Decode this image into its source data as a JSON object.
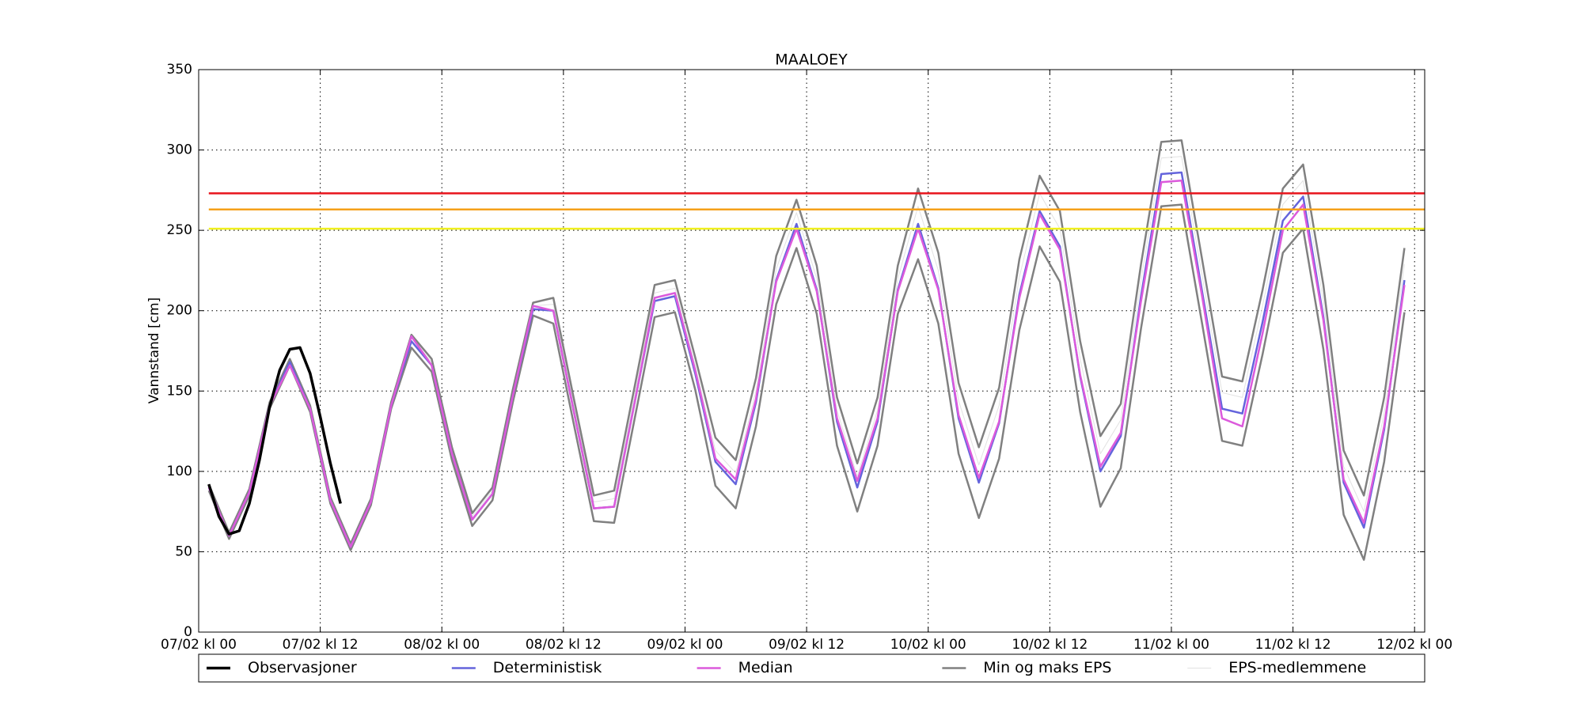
{
  "chart_data": {
    "type": "line",
    "title": "MAALOEY",
    "y_label": "Vannstand [cm]",
    "grid": true,
    "legend": "bottom",
    "xlim": [
      0,
      121
    ],
    "ylim": [
      0,
      350
    ],
    "yticks": [
      0,
      50,
      100,
      150,
      200,
      250,
      300,
      350
    ],
    "xticks": [
      {
        "value": 0,
        "label": "07/02 kl 00"
      },
      {
        "value": 12,
        "label": "07/02 kl 12"
      },
      {
        "value": 24,
        "label": "08/02 kl 00"
      },
      {
        "value": 36,
        "label": "08/02 kl 12"
      },
      {
        "value": 48,
        "label": "09/02 kl 00"
      },
      {
        "value": 60,
        "label": "09/02 kl 12"
      },
      {
        "value": 72,
        "label": "10/02 kl 00"
      },
      {
        "value": 84,
        "label": "10/02 kl 12"
      },
      {
        "value": 96,
        "label": "11/02 kl 00"
      },
      {
        "value": 108,
        "label": "11/02 kl 12"
      },
      {
        "value": 120,
        "label": "12/02 kl 00"
      }
    ],
    "x": [
      1,
      3,
      5,
      7,
      9,
      11,
      13,
      15,
      17,
      19,
      21,
      23,
      25,
      27,
      29,
      31,
      33,
      35,
      37,
      39,
      41,
      43,
      45,
      47,
      49,
      51,
      53,
      55,
      57,
      59,
      61,
      63,
      65,
      67,
      69,
      71,
      73,
      75,
      77,
      79,
      81,
      83,
      85,
      87,
      89,
      91,
      93,
      95,
      97,
      99,
      101,
      103,
      105,
      107,
      109,
      111,
      113,
      115,
      117,
      119
    ],
    "thresholds": [
      {
        "value": 273,
        "color": "#e8141c"
      },
      {
        "value": 263,
        "color": "#f5a01a"
      },
      {
        "value": 251,
        "color": "#f0f020"
      }
    ],
    "series": [
      {
        "name": "Observasjoner",
        "color": "#000000",
        "x": [
          1,
          2,
          3,
          4,
          5,
          6,
          7,
          8,
          9,
          10,
          11,
          12,
          13,
          14
        ],
        "values": [
          92,
          72,
          61,
          63,
          80,
          107,
          140,
          163,
          176,
          177,
          161,
          134,
          105,
          80
        ]
      },
      {
        "name": "Deterministisk",
        "color": "#6464dc",
        "values": [
          90,
          60,
          87,
          141,
          168,
          139,
          82,
          53,
          81,
          141,
          181,
          166,
          111,
          70,
          86,
          147,
          201,
          200,
          138,
          77,
          78,
          142,
          206,
          209,
          161,
          106,
          92,
          143,
          219,
          254,
          213,
          131,
          90,
          131,
          213,
          254,
          214,
          133,
          93,
          130,
          210,
          262,
          240,
          159,
          100,
          122,
          209,
          285,
          286,
          213,
          139,
          136,
          193,
          256,
          271,
          196,
          93,
          65,
          126,
          219
        ]
      },
      {
        "name": "Median",
        "color": "#dc5adc",
        "values": [
          90,
          60,
          87,
          141,
          166,
          139,
          82,
          53,
          81,
          141,
          184,
          166,
          111,
          70,
          86,
          147,
          203,
          200,
          138,
          77,
          78,
          142,
          208,
          211,
          163,
          108,
          95,
          145,
          218,
          251,
          212,
          133,
          94,
          133,
          212,
          251,
          213,
          135,
          96,
          131,
          208,
          260,
          238,
          160,
          103,
          124,
          206,
          280,
          281,
          210,
          133,
          128,
          186,
          250,
          266,
          194,
          95,
          68,
          128,
          216
        ]
      },
      {
        "name": "Min og maks EPS",
        "color": "#808080",
        "min": [
          88,
          58,
          85,
          139,
          166,
          137,
          80,
          51,
          79,
          139,
          177,
          162,
          107,
          66,
          82,
          143,
          197,
          192,
          130,
          69,
          68,
          132,
          196,
          199,
          151,
          91,
          77,
          128,
          204,
          239,
          198,
          116,
          75,
          116,
          198,
          232,
          192,
          111,
          71,
          108,
          188,
          240,
          218,
          137,
          78,
          102,
          189,
          265,
          266,
          193,
          119,
          116,
          173,
          236,
          251,
          176,
          73,
          45,
          106,
          199
        ],
        "max": [
          92,
          62,
          89,
          143,
          170,
          141,
          84,
          55,
          83,
          143,
          185,
          170,
          115,
          74,
          90,
          151,
          205,
          208,
          146,
          85,
          88,
          152,
          216,
          219,
          171,
          121,
          107,
          158,
          234,
          269,
          228,
          146,
          105,
          146,
          228,
          276,
          236,
          155,
          115,
          152,
          232,
          284,
          262,
          181,
          122,
          142,
          229,
          305,
          306,
          233,
          159,
          156,
          213,
          276,
          291,
          216,
          113,
          85,
          146,
          239
        ]
      },
      {
        "name": "EPS-medlemmene",
        "color": "#e2e2e2",
        "values": [
          91,
          61,
          88,
          142,
          169,
          140,
          83,
          54,
          82,
          142,
          183,
          168,
          113,
          72,
          88,
          149,
          203,
          204,
          142,
          81,
          83,
          147,
          211,
          214,
          166,
          113,
          99,
          150,
          226,
          261,
          220,
          138,
          97,
          138,
          220,
          265,
          225,
          144,
          104,
          141,
          221,
          273,
          251,
          170,
          111,
          132,
          219,
          295,
          296,
          223,
          149,
          146,
          203,
          266,
          281,
          206,
          103,
          75,
          136,
          229
        ]
      }
    ]
  }
}
